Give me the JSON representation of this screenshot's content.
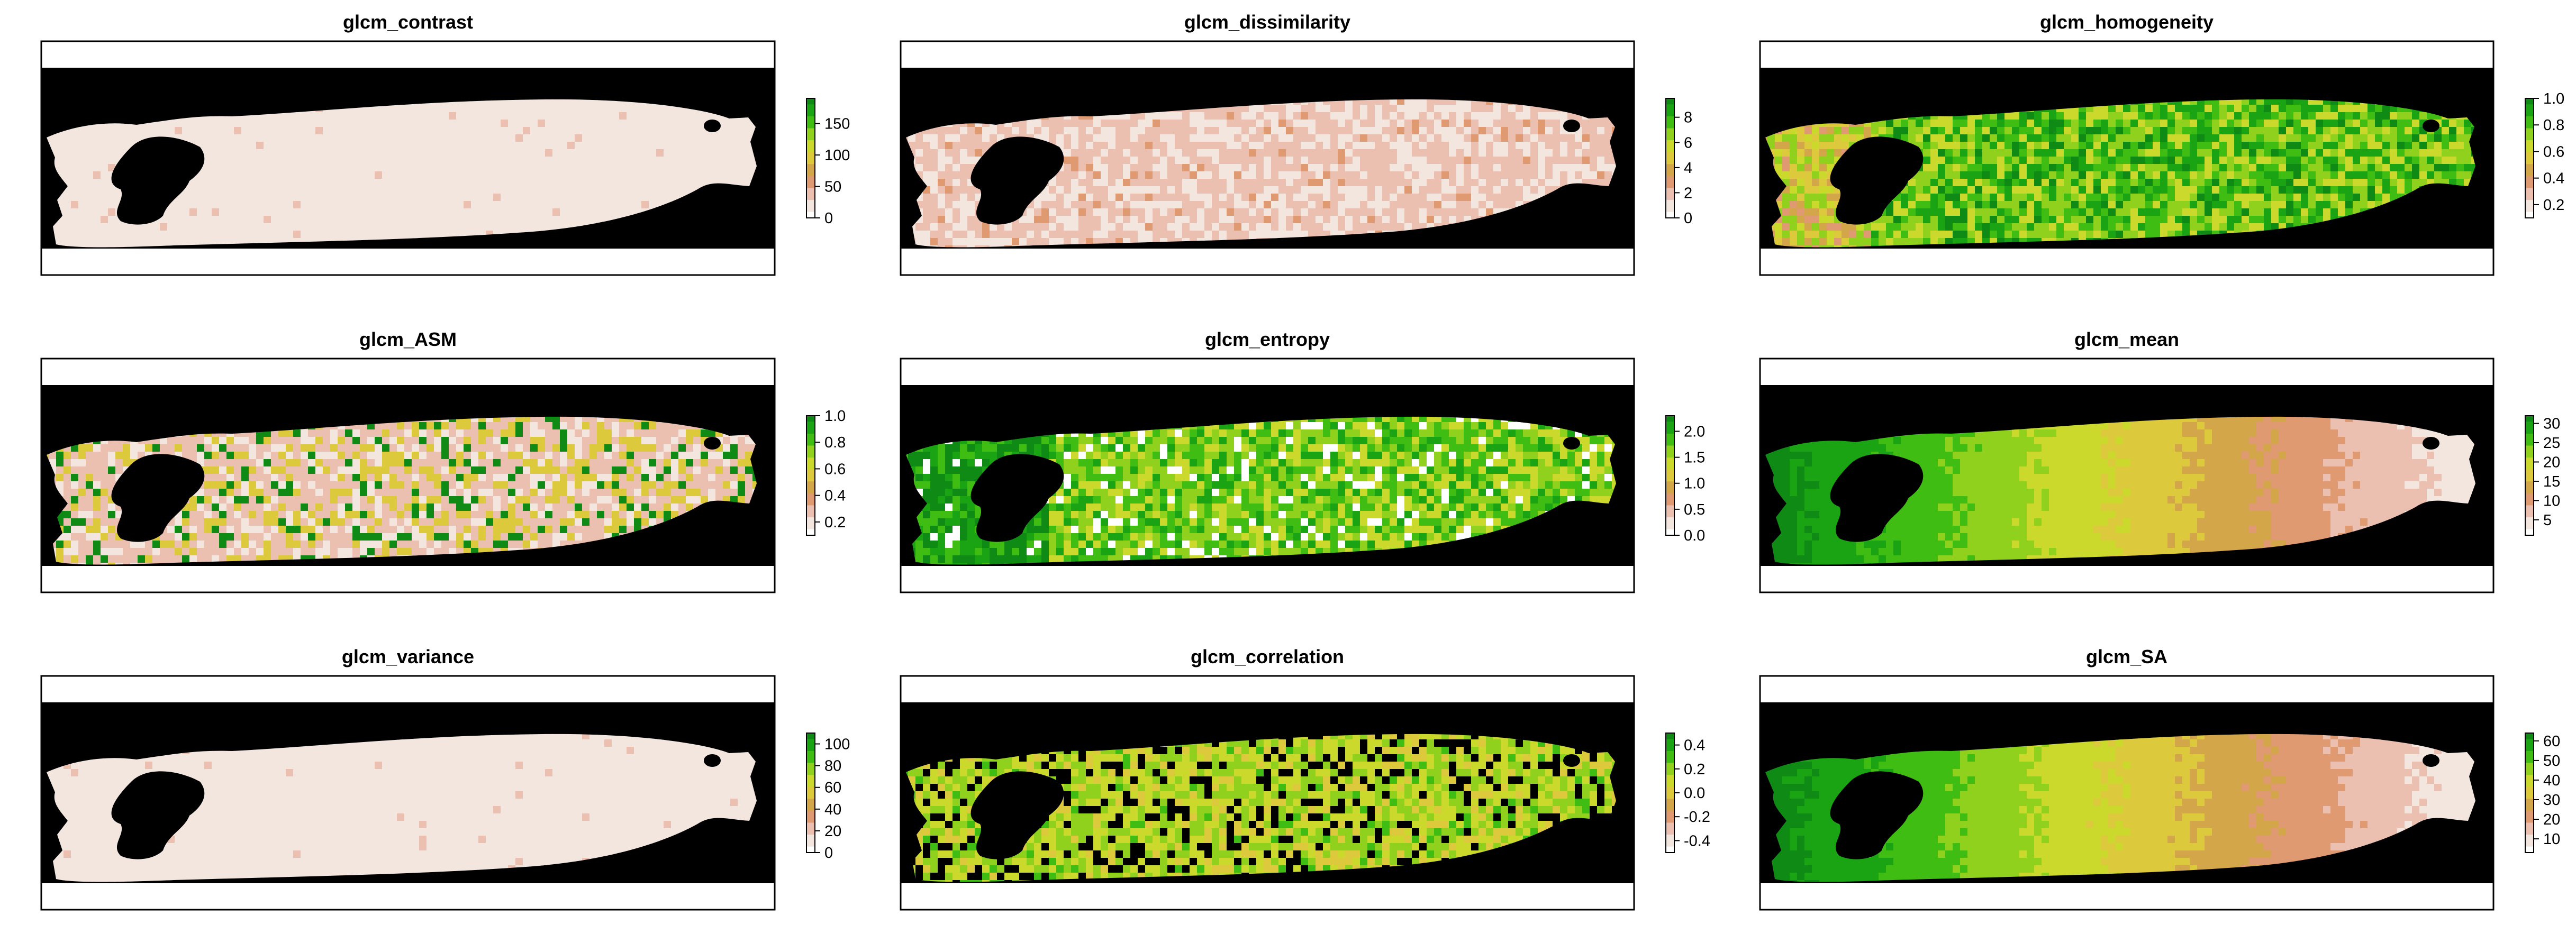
{
  "figure": {
    "colors": {
      "background": "#ffffff",
      "frame": "#000000",
      "mask": "#000000",
      "ramp": [
        "#ffffff",
        "#f2e6de",
        "#ecc0b1",
        "#e09a72",
        "#d4a64a",
        "#dcc93c",
        "#cbd92c",
        "#8fd11c",
        "#3fbd13",
        "#1aa312",
        "#0f8a14"
      ]
    }
  },
  "chart_data": [
    {
      "type": "heatmap",
      "title": "glcm_contrast",
      "legend_ticks": [
        "0",
        "50",
        "100",
        "150"
      ],
      "legend_tick_values": [
        0,
        50,
        100,
        150
      ],
      "legend_range": [
        0,
        190
      ],
      "field_pattern": "uniform-low",
      "legend": "right"
    },
    {
      "type": "heatmap",
      "title": "glcm_dissimilarity",
      "legend_ticks": [
        "0",
        "2",
        "4",
        "6",
        "8"
      ],
      "legend_tick_values": [
        0,
        2,
        4,
        6,
        8
      ],
      "legend_range": [
        0,
        9.5
      ],
      "field_pattern": "low-noisy",
      "legend": "right"
    },
    {
      "type": "heatmap",
      "title": "glcm_homogeneity",
      "legend_ticks": [
        "0.2",
        "0.4",
        "0.6",
        "0.8",
        "1.0"
      ],
      "legend_tick_values": [
        0.2,
        0.4,
        0.6,
        0.8,
        1.0
      ],
      "legend_range": [
        0.1,
        1.0
      ],
      "field_pattern": "high-noisy",
      "legend": "right"
    },
    {
      "type": "heatmap",
      "title": "glcm_ASM",
      "legend_ticks": [
        "0.2",
        "0.4",
        "0.6",
        "0.8",
        "1.0"
      ],
      "legend_tick_values": [
        0.2,
        0.4,
        0.6,
        0.8,
        1.0
      ],
      "legend_range": [
        0.1,
        1.0
      ],
      "field_pattern": "low-speckled",
      "legend": "right"
    },
    {
      "type": "heatmap",
      "title": "glcm_entropy",
      "legend_ticks": [
        "0.0",
        "0.5",
        "1.0",
        "1.5",
        "2.0"
      ],
      "legend_tick_values": [
        0.0,
        0.5,
        1.0,
        1.5,
        2.0
      ],
      "legend_range": [
        0,
        2.3
      ],
      "field_pattern": "high-holes",
      "legend": "right"
    },
    {
      "type": "heatmap",
      "title": "glcm_mean",
      "legend_ticks": [
        "5",
        "10",
        "15",
        "20",
        "25",
        "30"
      ],
      "legend_tick_values": [
        5,
        10,
        15,
        20,
        25,
        30
      ],
      "legend_range": [
        1,
        32
      ],
      "field_pattern": "gradient-left-high",
      "legend": "right"
    },
    {
      "type": "heatmap",
      "title": "glcm_variance",
      "legend_ticks": [
        "0",
        "20",
        "40",
        "60",
        "80",
        "100"
      ],
      "legend_tick_values": [
        0,
        20,
        40,
        60,
        80,
        100
      ],
      "legend_range": [
        0,
        110
      ],
      "field_pattern": "uniform-low",
      "legend": "right"
    },
    {
      "type": "heatmap",
      "title": "glcm_correlation",
      "legend_ticks": [
        "-0.4",
        "-0.2",
        "0.0",
        "0.2",
        "0.4"
      ],
      "legend_tick_values": [
        -0.4,
        -0.2,
        0.0,
        0.2,
        0.4
      ],
      "legend_range": [
        -0.5,
        0.5
      ],
      "field_pattern": "mid-with-black-holes",
      "legend": "right"
    },
    {
      "type": "heatmap",
      "title": "glcm_SA",
      "legend_ticks": [
        "10",
        "20",
        "30",
        "40",
        "50",
        "60"
      ],
      "legend_tick_values": [
        10,
        20,
        30,
        40,
        50,
        60
      ],
      "legend_range": [
        3,
        64
      ],
      "field_pattern": "gradient-left-high",
      "legend": "right"
    }
  ]
}
